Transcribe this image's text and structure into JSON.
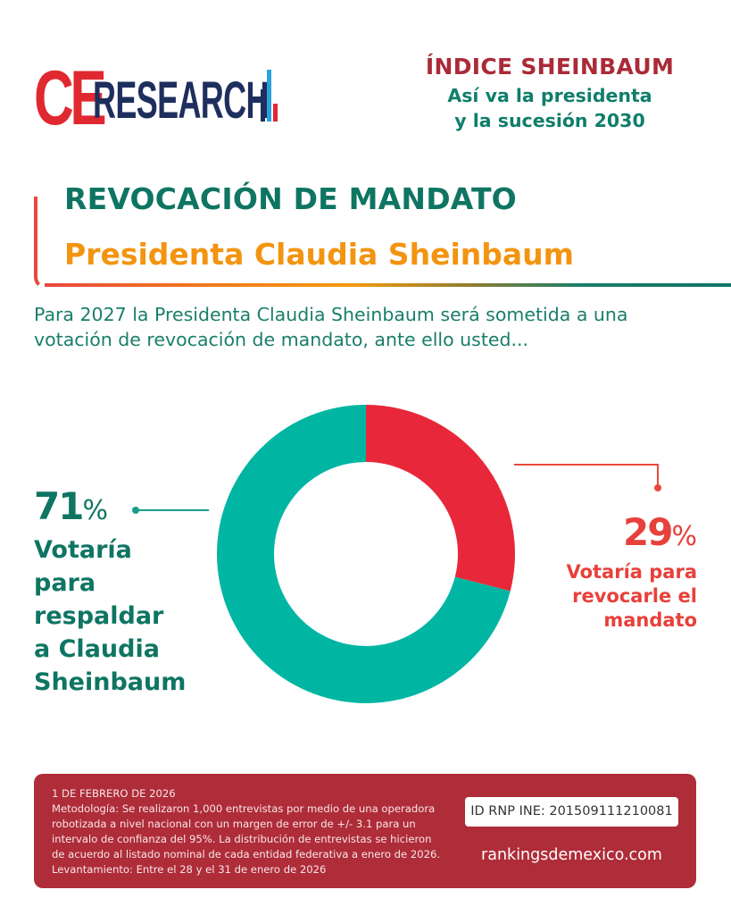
{
  "brand": {
    "logo_ce": "CE",
    "logo_research": "RESEARCH",
    "colors": {
      "red": "#e02830",
      "navy": "#1e2f5e",
      "blue": "#29a3dd"
    }
  },
  "header": {
    "index_title": "ÍNDICE SHEINBAUM",
    "subtitle_line1": "Así va la presidenta",
    "subtitle_line2": "y la sucesión 2030"
  },
  "section": {
    "title": "REVOCACIÓN DE MANDATO",
    "subject": "Presidenta Claudia Sheinbaum",
    "question": "Para 2027 la Presidenta Claudia Sheinbaum será sometida a una votación de revocación de mandato, ante ello usted..."
  },
  "chart_data": {
    "type": "pie",
    "variant": "donut",
    "title": "REVOCACIÓN DE MANDATO",
    "start_angle": "12 o'clock, clockwise",
    "slices": [
      {
        "label": "Votaría para revocarle el mandato",
        "value": 29,
        "unit": "%",
        "color": "#e8283a",
        "label_position": "right"
      },
      {
        "label": "Votaría para respaldar a Claudia Sheinbaum",
        "value": 71,
        "unit": "%",
        "color": "#00b6a3",
        "label_position": "left"
      }
    ]
  },
  "labels": {
    "support_pct": "71",
    "support_pct_sign": "%",
    "support_text": "Votaría\npara\nrespaldar\na Claudia\nSheinbaum",
    "revoke_pct": "29",
    "revoke_pct_sign": "%",
    "revoke_text": "Votaría para\nrevocarle el\nmandato"
  },
  "footer": {
    "date": "1 DE FEBRERO DE 2026",
    "methodology": "Metodología: Se realizaron 1,000 entrevistas por medio de una operadora robotizada a nivel nacional con un margen de error de +/- 3.1 para un intervalo de confianza del 95%. La distribución de entrevistas se hicieron de acuerdo al listado nominal de cada entidad federativa a enero de 2026.",
    "fieldwork": "Levantamiento: Entre el 28 y el 31 de enero de 2026",
    "rnp_id": "ID RNP INE: 201509111210081",
    "website": "rankingsdemexico.com"
  }
}
